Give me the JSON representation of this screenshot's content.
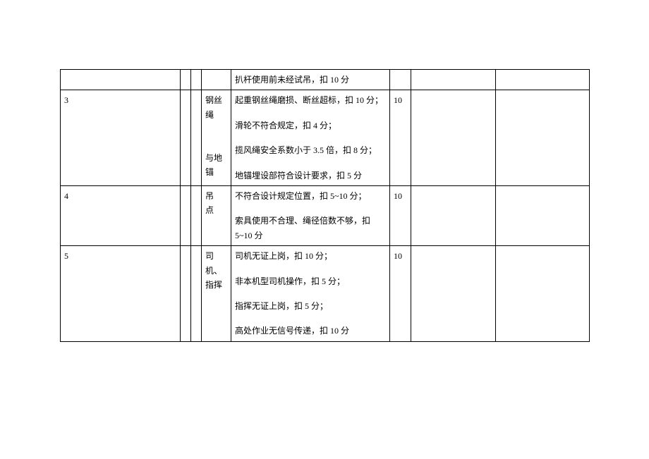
{
  "table": {
    "background_color": "#ffffff",
    "border_color": "#000000",
    "text_color": "#000000",
    "font_family": "SimSun",
    "font_size": 12,
    "rows": [
      {
        "c1": "",
        "c2": "",
        "c3": "",
        "c4": "",
        "c5_items": [
          "扒杆使用前未经试吊，扣 10 分"
        ],
        "c6": "",
        "c7": "",
        "c8": ""
      },
      {
        "c1": "3",
        "c2": "",
        "c3": "",
        "c4_lines": [
          "钢丝",
          "绳",
          "",
          "与地",
          "锚"
        ],
        "c5_items": [
          "起重钢丝绳磨损、断丝超标，扣 10 分；",
          "滑轮不符合规定，扣 4 分；",
          "揽风绳安全系数小于 3.5 倍，扣 8 分；",
          "地锚埋设部符合设计要求，扣 5 分"
        ],
        "c6": "10",
        "c7": "",
        "c8": ""
      },
      {
        "c1": "4",
        "c2": "",
        "c3": "",
        "c4_lines": [
          "吊",
          "点"
        ],
        "c5_items": [
          "不符合设计规定位置，扣 5~10 分；",
          "索具使用不合理、绳径倍数不够，扣 5~10 分"
        ],
        "c6": "10",
        "c7": "",
        "c8": ""
      },
      {
        "c1": "5",
        "c2": "",
        "c3": "",
        "c4_lines": [
          "司",
          "机、",
          "指挥"
        ],
        "c5_items": [
          "司机无证上岗，扣 10 分；",
          "非本机型司机操作，扣 5 分；",
          "指挥无证上岗，扣 5 分；",
          "高处作业无信号传递，扣 10 分"
        ],
        "c6": "10",
        "c7": "",
        "c8": ""
      }
    ]
  }
}
